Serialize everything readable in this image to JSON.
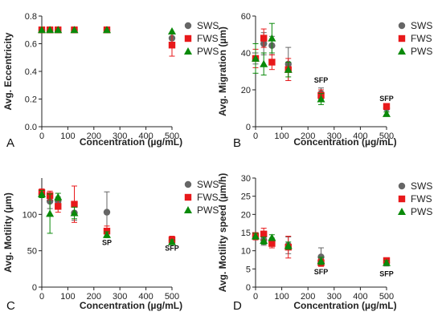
{
  "series_styles": {
    "SWS": {
      "color": "#666666",
      "marker": "circle"
    },
    "FWS": {
      "color": "#e8191b",
      "marker": "square"
    },
    "PWS": {
      "color": "#0a8a0a",
      "marker": "triangle"
    }
  },
  "chart_data": [
    {
      "panel": "A",
      "type": "scatter",
      "xlabel": "Concentration (µg/mL)",
      "ylabel": "Avg. Eccentricity",
      "xlim": [
        0,
        500
      ],
      "ylim": [
        0,
        0.8
      ],
      "xticks": [
        0,
        100,
        200,
        300,
        400,
        500
      ],
      "yticks": [
        0.0,
        0.2,
        0.4,
        0.6,
        0.8
      ],
      "ytick_labels": [
        "0.0",
        "0.2",
        "0.4",
        "0.6",
        "0.8"
      ],
      "legend": [
        "SWS",
        "FWS",
        "PWS"
      ],
      "series": [
        {
          "name": "SWS",
          "x": [
            0,
            31.25,
            62.5,
            125,
            250,
            500
          ],
          "y": [
            0.7,
            0.7,
            0.7,
            0.7,
            0.7,
            0.64
          ],
          "err": [
            0,
            0,
            0,
            0,
            0,
            0.03
          ]
        },
        {
          "name": "FWS",
          "x": [
            0,
            31.25,
            62.5,
            125,
            250,
            500
          ],
          "y": [
            0.7,
            0.7,
            0.7,
            0.7,
            0.7,
            0.59
          ],
          "err": [
            0,
            0,
            0,
            0,
            0,
            0.08
          ]
        },
        {
          "name": "PWS",
          "x": [
            0,
            31.25,
            62.5,
            125,
            250,
            500
          ],
          "y": [
            0.7,
            0.7,
            0.7,
            0.7,
            0.7,
            0.69
          ],
          "err": [
            0,
            0,
            0,
            0,
            0,
            0
          ]
        }
      ],
      "annotations": []
    },
    {
      "panel": "B",
      "type": "scatter",
      "xlabel": "Concentration (µg/mL)",
      "ylabel": "Avg. Migration (µm)",
      "xlim": [
        0,
        500
      ],
      "ylim": [
        0,
        60
      ],
      "xticks": [
        0,
        100,
        200,
        300,
        400,
        500
      ],
      "yticks": [
        0,
        20,
        40,
        60
      ],
      "ytick_labels": [
        "0",
        "20",
        "40",
        "60"
      ],
      "legend": [
        "SWS",
        "FWS",
        "PWS"
      ],
      "series": [
        {
          "name": "SWS",
          "x": [
            0,
            31.25,
            62.5,
            125,
            250,
            500
          ],
          "y": [
            37,
            45,
            44,
            34,
            18,
            10
          ],
          "err": [
            3,
            6,
            5,
            9,
            3,
            2
          ]
        },
        {
          "name": "FWS",
          "x": [
            0,
            31.25,
            62.5,
            125,
            250,
            500
          ],
          "y": [
            37,
            48,
            35,
            31,
            17,
            11
          ],
          "err": [
            5,
            5,
            4,
            6,
            3,
            1
          ]
        },
        {
          "name": "PWS",
          "x": [
            0,
            31.25,
            62.5,
            125,
            250,
            500
          ],
          "y": [
            37,
            34,
            48,
            31,
            15,
            7
          ],
          "err": [
            8,
            6,
            8,
            4,
            3,
            1
          ]
        }
      ],
      "annotations": [
        {
          "text": "SFP",
          "x": 250,
          "y": 24
        },
        {
          "text": "SFP",
          "x": 500,
          "y": 14
        }
      ]
    },
    {
      "panel": "C",
      "type": "scatter",
      "xlabel": "Concentration (µg/mL)",
      "ylabel": "Avg. Motility (µm)",
      "xlim": [
        0,
        500
      ],
      "ylim": [
        0,
        150
      ],
      "xticks": [
        0,
        100,
        200,
        300,
        400,
        500
      ],
      "yticks": [
        0,
        50,
        100
      ],
      "ytick_labels": [
        "0",
        "50",
        "100"
      ],
      "legend": [
        "SWS",
        "FWS",
        "PWS"
      ],
      "series": [
        {
          "name": "SWS",
          "x": [
            0,
            31.25,
            62.5,
            125,
            250,
            500
          ],
          "y": [
            128,
            118,
            118,
            102,
            103,
            64
          ],
          "err": [
            5,
            10,
            6,
            10,
            28,
            5
          ]
        },
        {
          "name": "FWS",
          "x": [
            0,
            31.25,
            62.5,
            125,
            250,
            500
          ],
          "y": [
            130,
            126,
            111,
            114,
            77,
            65
          ],
          "err": [
            5,
            6,
            8,
            25,
            7,
            5
          ]
        },
        {
          "name": "PWS",
          "x": [
            0,
            31.25,
            62.5,
            125,
            250,
            500
          ],
          "y": [
            128,
            101,
            124,
            102,
            72,
            62
          ],
          "err": [
            5,
            27,
            5,
            8,
            4,
            3
          ]
        }
      ],
      "annotations": [
        {
          "text": "SP",
          "x": 250,
          "y": 58
        },
        {
          "text": "SFP",
          "x": 500,
          "y": 50
        }
      ]
    },
    {
      "panel": "D",
      "type": "scatter",
      "xlabel": "Concentration (µg/mL)",
      "ylabel": "Avg. Motility speed (µm/h)",
      "xlim": [
        0,
        500
      ],
      "ylim": [
        0,
        30
      ],
      "xticks": [
        0,
        100,
        200,
        300,
        400,
        500
      ],
      "yticks": [
        0,
        5,
        10,
        15,
        20,
        25,
        30
      ],
      "ytick_labels": [
        "0",
        "5",
        "10",
        "15",
        "20",
        "25",
        "30"
      ],
      "legend": [
        "SWS",
        "FWS",
        "PWS"
      ],
      "series": [
        {
          "name": "SWS",
          "x": [
            0,
            31.25,
            62.5,
            125,
            250,
            500
          ],
          "y": [
            14,
            13,
            12.5,
            11.5,
            8.3,
            6.8
          ],
          "err": [
            1,
            1.5,
            1,
            2.3,
            2.5,
            1
          ]
        },
        {
          "name": "FWS",
          "x": [
            0,
            31.25,
            62.5,
            125,
            250,
            500
          ],
          "y": [
            14,
            14.6,
            12,
            11,
            6.7,
            7.3
          ],
          "err": [
            1,
            1.6,
            1.2,
            3,
            1,
            0.6
          ]
        },
        {
          "name": "PWS",
          "x": [
            0,
            31.25,
            62.5,
            125,
            250,
            500
          ],
          "y": [
            14,
            12.8,
            13.6,
            11.4,
            7.2,
            6.7
          ],
          "err": [
            0.8,
            1,
            0.8,
            1,
            1,
            0.6
          ]
        }
      ],
      "annotations": [
        {
          "text": "SFP",
          "x": 250,
          "y": 3.5
        },
        {
          "text": "SFP",
          "x": 500,
          "y": 3
        }
      ]
    }
  ]
}
